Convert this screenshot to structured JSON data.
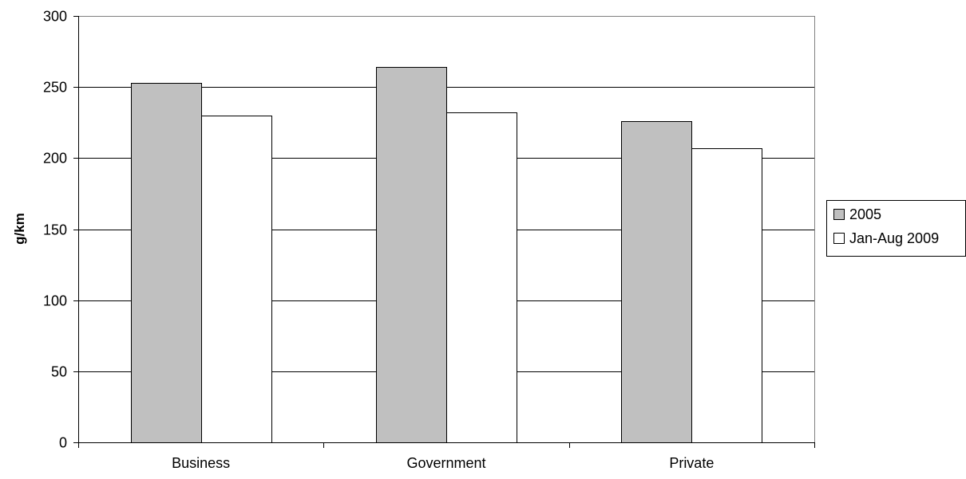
{
  "chart_data": {
    "type": "bar",
    "title": "",
    "xlabel": "",
    "ylabel": "g/km",
    "categories": [
      "Business",
      "Government",
      "Private"
    ],
    "series": [
      {
        "name": "2005",
        "values": [
          253,
          264,
          226
        ],
        "color": "#c0c0c0"
      },
      {
        "name": "Jan-Aug 2009",
        "values": [
          230,
          232,
          207
        ],
        "color": "#ffffff"
      }
    ],
    "ylim": [
      0,
      300
    ],
    "yticks": [
      0,
      50,
      100,
      150,
      200,
      250,
      300
    ],
    "grid": true,
    "legend_position": "right"
  }
}
